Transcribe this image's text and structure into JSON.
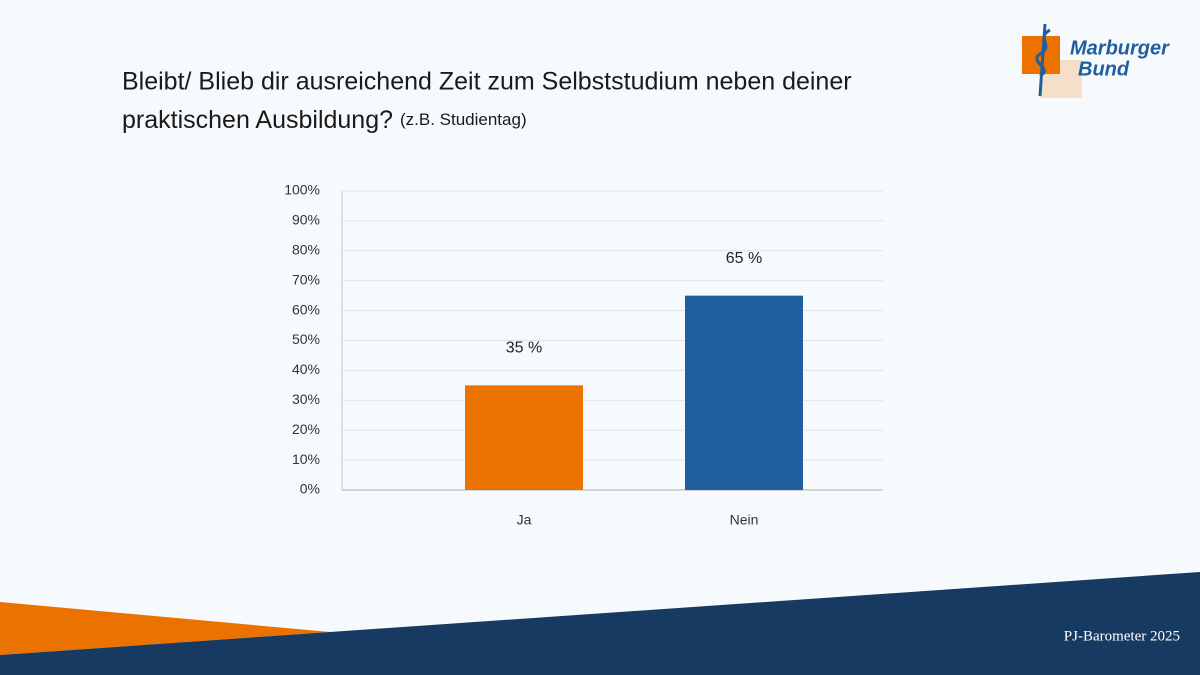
{
  "chart_data": {
    "type": "bar",
    "title": [
      "Bleibt/ Blieb dir ausreichend Zeit zum Selbststudium neben deiner",
      "praktischen Ausbildung?"
    ],
    "subtitle": "(z.B. Studientag)",
    "categories": [
      "Ja",
      "Nein"
    ],
    "values": [
      35,
      65
    ],
    "value_labels": [
      "35 %",
      "65 %"
    ],
    "colors": [
      "#ec7200",
      "#1f5f9e"
    ],
    "ylim": [
      0,
      100
    ],
    "yticks": [
      {
        "value": 0,
        "label": "0%"
      },
      {
        "value": 10,
        "label": "10%"
      },
      {
        "value": 20,
        "label": "20%"
      },
      {
        "value": 30,
        "label": "30%"
      },
      {
        "value": 40,
        "label": "40%"
      },
      {
        "value": 50,
        "label": "50%"
      },
      {
        "value": 60,
        "label": "60%"
      },
      {
        "value": 70,
        "label": "70%"
      },
      {
        "value": 80,
        "label": "80%"
      },
      {
        "value": 90,
        "label": "90%"
      },
      {
        "value": 100,
        "label": "100%"
      }
    ],
    "grid": true
  },
  "logo": {
    "line1": "Marburger",
    "line2": "Bund"
  },
  "footer": "PJ-Barometer 2025"
}
